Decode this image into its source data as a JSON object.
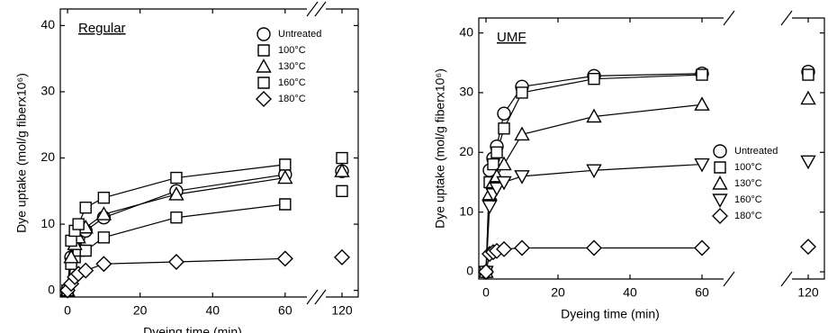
{
  "chart_data": [
    {
      "type": "line",
      "title": "Regular",
      "xlabel": "Dyeing time (min)",
      "ylabel": "Dye uptake (mol/g fiberx10⁶)",
      "x": [
        0,
        1,
        2,
        3,
        5,
        10,
        30,
        60,
        120
      ],
      "xlim": [
        -2,
        66
      ],
      "xticks": [
        0,
        20,
        40,
        60
      ],
      "xlim2": [
        116,
        124
      ],
      "xticks2": [
        120
      ],
      "ylim": [
        -1,
        42.5
      ],
      "yticks": [
        0,
        10,
        20,
        30,
        40
      ],
      "legend": "upper right",
      "series": [
        {
          "name": "Untreated",
          "marker": "circle",
          "color": "#000000",
          "values": [
            0,
            5,
            7,
            8,
            9,
            11,
            15,
            17.5,
            18
          ]
        },
        {
          "name": "100°C",
          "marker": "square",
          "color": "#000000",
          "values": [
            0,
            4,
            5,
            6,
            6,
            8,
            11,
            13,
            15
          ]
        },
        {
          "name": "130°C",
          "marker": "triangle",
          "color": "#000000",
          "values": [
            0,
            5,
            7,
            8,
            9.5,
            11.5,
            14.5,
            17,
            18
          ]
        },
        {
          "name": "160°C",
          "marker": "square",
          "color": "#000000",
          "values": [
            0,
            7.5,
            9,
            10,
            12.5,
            14,
            17,
            19,
            20
          ]
        },
        {
          "name": "180°C",
          "marker": "diamond",
          "color": "#000000",
          "values": [
            0,
            1,
            2,
            2.5,
            3,
            4,
            4.3,
            4.8,
            5
          ]
        }
      ]
    },
    {
      "type": "line",
      "title": "UMF",
      "xlabel": "Dyeing time (min)",
      "ylabel": "Dye uptake (mol/g fiberx10⁶)",
      "x": [
        0,
        1,
        2,
        3,
        5,
        10,
        30,
        60,
        120
      ],
      "xlim": [
        -2,
        66
      ],
      "xticks": [
        0,
        20,
        40,
        60
      ],
      "xlim2": [
        116,
        124
      ],
      "xticks2": [
        120
      ],
      "ylim": [
        -1.2,
        42.5
      ],
      "yticks": [
        0,
        10,
        20,
        30,
        40
      ],
      "legend": "lower right",
      "series": [
        {
          "name": "Untreated",
          "marker": "circle",
          "color": "#000000",
          "values": [
            0,
            17,
            19,
            21,
            26.5,
            31,
            32.8,
            33.2,
            33.5
          ]
        },
        {
          "name": "100°C",
          "marker": "square",
          "color": "#000000",
          "values": [
            0,
            15,
            18,
            20,
            24,
            30,
            32.3,
            33,
            33
          ]
        },
        {
          "name": "130°C",
          "marker": "triangle",
          "color": "#000000",
          "values": [
            0,
            13,
            15,
            16,
            18,
            23,
            26,
            28,
            29
          ]
        },
        {
          "name": "160°C",
          "marker": "triangle-down",
          "color": "#000000",
          "values": [
            0,
            11,
            13,
            14,
            15,
            16,
            17,
            18,
            18.5
          ]
        },
        {
          "name": "180°C",
          "marker": "diamond",
          "color": "#000000",
          "values": [
            0,
            3,
            3.3,
            3.5,
            3.8,
            4,
            4,
            4,
            4.2
          ]
        }
      ]
    }
  ]
}
